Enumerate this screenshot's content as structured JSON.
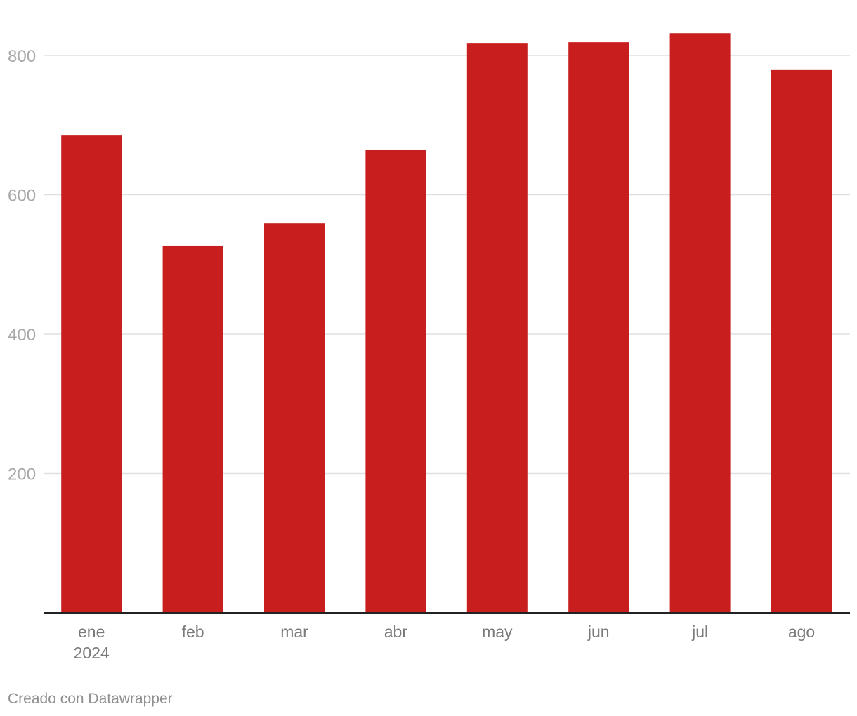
{
  "chart_data": {
    "type": "bar",
    "categories": [
      "ene",
      "feb",
      "mar",
      "abr",
      "may",
      "jun",
      "jul",
      "ago"
    ],
    "category_sublabels": [
      "2024",
      "",
      "",
      "",
      "",
      "",
      "",
      ""
    ],
    "values": [
      685,
      527,
      559,
      665,
      818,
      819,
      832,
      779
    ],
    "title": "",
    "xlabel": "",
    "ylabel": "",
    "ylim": [
      0,
      850
    ],
    "yticks": [
      200,
      400,
      600,
      800
    ],
    "bar_color": "#c81e1e",
    "grid": true,
    "legend": "none"
  },
  "footer": {
    "credit": "Creado con Datawrapper"
  }
}
